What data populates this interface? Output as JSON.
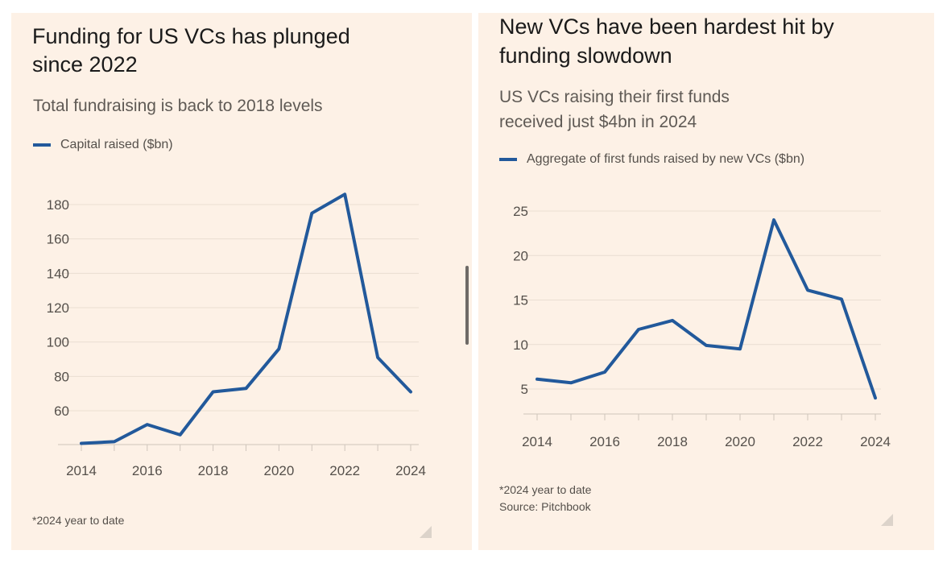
{
  "colors": {
    "series": "#22599b",
    "background": "#fdf1e6",
    "grid": "#eaded2"
  },
  "left_panel": {
    "title_line1": "Funding for US VCs has plunged",
    "title_line2": "since 2022",
    "subtitle": "Total fundraising is back to 2018 levels",
    "footnote": "*2024 year to date"
  },
  "right_panel": {
    "title_line1": "New VCs have been hardest hit by",
    "title_line2": "funding slowdown",
    "subtitle_line1": "US VCs raising their first funds",
    "subtitle_line2": "received just $4bn in 2024",
    "footnote": "*2024 year to date",
    "source": "Source: Pitchbook"
  },
  "chart_data": [
    {
      "type": "line",
      "title": "Funding for US VCs has plunged since 2022",
      "subtitle": "Total fundraising is back to 2018 levels",
      "x": [
        2014,
        2015,
        2016,
        2017,
        2018,
        2019,
        2020,
        2021,
        2022,
        2023,
        2024
      ],
      "series": [
        {
          "name": "Capital raised ($bn)",
          "values": [
            41,
            42,
            52,
            46,
            71,
            73,
            96,
            175,
            186,
            91,
            71
          ]
        }
      ],
      "xticks": [
        2014,
        2016,
        2018,
        2020,
        2022,
        2024
      ],
      "yticks": [
        60,
        80,
        100,
        120,
        140,
        160,
        180
      ],
      "xlim": [
        2014,
        2024
      ],
      "ylim": [
        40,
        190
      ],
      "grid": true,
      "legend": "top-left",
      "xlabel": "",
      "ylabel": "",
      "annotation": "*2024 year to date"
    },
    {
      "type": "line",
      "title": "New VCs have been hardest hit by funding slowdown",
      "subtitle": "US VCs raising their first funds received just $4bn in 2024",
      "x": [
        2014,
        2015,
        2016,
        2017,
        2018,
        2019,
        2020,
        2021,
        2022,
        2023,
        2024
      ],
      "series": [
        {
          "name": "Aggregate of first funds raised by new VCs ($bn)",
          "values": [
            6.1,
            5.7,
            6.9,
            11.7,
            12.7,
            9.9,
            9.5,
            24,
            16.1,
            15.1,
            4
          ]
        }
      ],
      "xticks": [
        2014,
        2016,
        2018,
        2020,
        2022,
        2024
      ],
      "yticks": [
        5,
        10,
        15,
        20,
        25
      ],
      "xlim": [
        2014,
        2024
      ],
      "ylim": [
        2.5,
        26
      ],
      "grid": true,
      "legend": "top-left",
      "xlabel": "",
      "ylabel": "",
      "annotation": "*2024 year to date"
    }
  ]
}
